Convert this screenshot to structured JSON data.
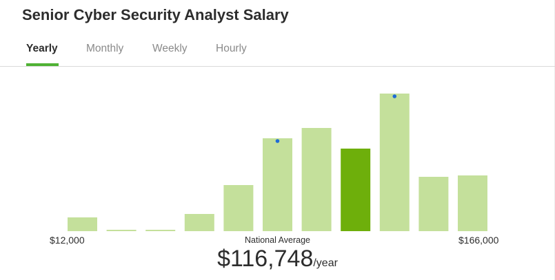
{
  "title": "Senior Cyber Security Analyst Salary",
  "tabs": {
    "yearly": "Yearly",
    "monthly": "Monthly",
    "weekly": "Weekly",
    "hourly": "Hourly",
    "active": "Yearly"
  },
  "axis": {
    "min_label": "$12,000",
    "max_label": "$166,000"
  },
  "average": {
    "label": "National Average",
    "value": "$116,748",
    "unit": "/year"
  },
  "colors": {
    "bar": "#c4e09b",
    "bar_highlight": "#6eaf0b",
    "tab_accent": "#4fb234",
    "marker": "#1f6bd6"
  },
  "chart_data": {
    "type": "bar",
    "xlim": [
      12000,
      166000
    ],
    "bins": 11,
    "values": [
      20,
      2,
      2,
      25,
      67,
      135,
      150,
      120,
      200,
      79,
      81
    ],
    "highlight_index": 7,
    "marker_indices": [
      5,
      8
    ],
    "ylim": [
      0,
      220
    ]
  }
}
